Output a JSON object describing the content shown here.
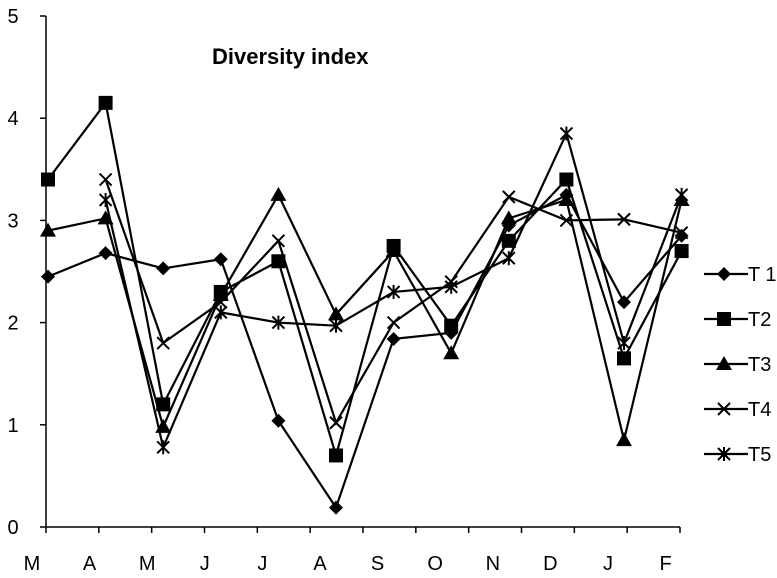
{
  "chart_data": {
    "type": "line",
    "title": "Diversity index",
    "xlabel": "",
    "ylabel": "",
    "categories": [
      "M",
      "A",
      "M",
      "J",
      "J",
      "A",
      "S",
      "O",
      "N",
      "D",
      "J",
      "F"
    ],
    "ylim": [
      0,
      5
    ],
    "yticks": [
      "0",
      "1",
      "2",
      "3",
      "4",
      "5"
    ],
    "grid": false,
    "legend_position": "right",
    "series": [
      {
        "name": "T 1",
        "marker": "diamond",
        "values": [
          2.45,
          2.68,
          2.53,
          2.62,
          1.04,
          0.19,
          1.84,
          1.9,
          2.95,
          3.25,
          2.2,
          2.85
        ]
      },
      {
        "name": "T2",
        "marker": "square",
        "values": [
          3.4,
          4.15,
          1.2,
          2.3,
          2.6,
          0.7,
          2.75,
          1.97,
          2.8,
          3.4,
          1.65,
          2.7
        ]
      },
      {
        "name": "T3",
        "marker": "triangle",
        "values": [
          2.9,
          3.02,
          0.98,
          2.27,
          3.25,
          2.08,
          2.7,
          1.7,
          3.02,
          3.2,
          0.85,
          3.2
        ]
      },
      {
        "name": "T4",
        "marker": "x",
        "values": [
          null,
          3.4,
          1.8,
          2.2,
          2.8,
          1.02,
          2.0,
          2.4,
          3.23,
          3.0,
          3.01,
          2.88
        ]
      },
      {
        "name": "T5",
        "marker": "star",
        "values": [
          null,
          3.2,
          0.78,
          2.1,
          2.0,
          1.97,
          2.3,
          2.35,
          2.63,
          3.85,
          1.8,
          3.25
        ]
      }
    ]
  }
}
